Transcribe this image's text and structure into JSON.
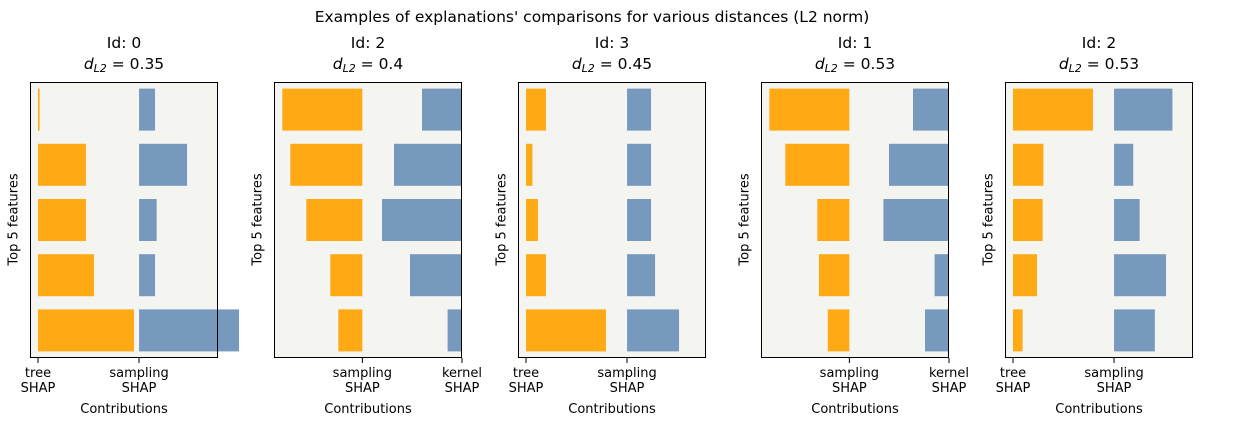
{
  "figure": {
    "suptitle": "Examples of explanations' comparisons for various distances (L2 norm)",
    "colors": {
      "left_bars": "#FFA914",
      "right_bars": "#7799BE",
      "axes_face": "#F4F4F1"
    }
  },
  "chart_data": [
    {
      "type": "bar",
      "orientation": "horizontal",
      "id_label": "Id: 0",
      "dist_prefix": "d",
      "dist_sub": "L2",
      "dist_value": " = 0.35",
      "ylabel": "Top 5 features",
      "xlabel": "Contributions",
      "x_tick_top": [
        "tree",
        "sampling"
      ],
      "x_tick_bottom": [
        "SHAP",
        "SHAP"
      ],
      "series": [
        {
          "values": [
            0.02,
            0.6,
            0.6,
            0.7,
            1.2
          ]
        },
        {
          "values": [
            0.2,
            0.6,
            0.22,
            0.2,
            1.25
          ]
        }
      ]
    },
    {
      "type": "bar",
      "orientation": "horizontal",
      "id_label": "Id: 2",
      "dist_prefix": "d",
      "dist_sub": "L2",
      "dist_value": " = 0.4",
      "ylabel": "Top 5 features",
      "xlabel": "Contributions",
      "x_tick_top": [
        "sampling",
        "kernel"
      ],
      "x_tick_bottom": [
        "SHAP",
        "SHAP"
      ],
      "series": [
        {
          "values": [
            1.0,
            0.9,
            0.7,
            0.4,
            0.3
          ]
        },
        {
          "values": [
            0.5,
            0.85,
            1.0,
            0.65,
            0.18
          ]
        }
      ]
    },
    {
      "type": "bar",
      "orientation": "horizontal",
      "id_label": "Id: 3",
      "dist_prefix": "d",
      "dist_sub": "L2",
      "dist_value": " = 0.45",
      "ylabel": "Top 5 features",
      "xlabel": "Contributions",
      "x_tick_top": [
        "tree",
        "sampling"
      ],
      "x_tick_bottom": [
        "SHAP",
        "SHAP"
      ],
      "series": [
        {
          "values": [
            0.25,
            0.08,
            0.15,
            0.25,
            1.0
          ]
        },
        {
          "values": [
            0.3,
            0.3,
            0.3,
            0.35,
            0.65
          ]
        }
      ]
    },
    {
      "type": "bar",
      "orientation": "horizontal",
      "id_label": "Id: 1",
      "dist_prefix": "d",
      "dist_sub": "L2",
      "dist_value": " = 0.53",
      "ylabel": "Top 5 features",
      "xlabel": "Contributions",
      "x_tick_top": [
        "sampling",
        "kernel"
      ],
      "x_tick_bottom": [
        "SHAP",
        "SHAP"
      ],
      "series": [
        {
          "values": [
            1.0,
            0.8,
            0.4,
            0.38,
            0.27
          ]
        },
        {
          "values": [
            0.45,
            0.75,
            0.82,
            0.18,
            0.3
          ]
        }
      ]
    },
    {
      "type": "bar",
      "orientation": "horizontal",
      "id_label": "Id: 2",
      "dist_prefix": "d",
      "dist_sub": "L2",
      "dist_value": " = 0.53",
      "ylabel": "Top 5 features",
      "xlabel": "Contributions",
      "x_tick_top": [
        "tree",
        "sampling"
      ],
      "x_tick_bottom": [
        "SHAP",
        "SHAP"
      ],
      "series": [
        {
          "values": [
            1.0,
            0.38,
            0.37,
            0.3,
            0.12
          ]
        },
        {
          "values": [
            0.73,
            0.24,
            0.32,
            0.65,
            0.51
          ]
        }
      ]
    }
  ]
}
